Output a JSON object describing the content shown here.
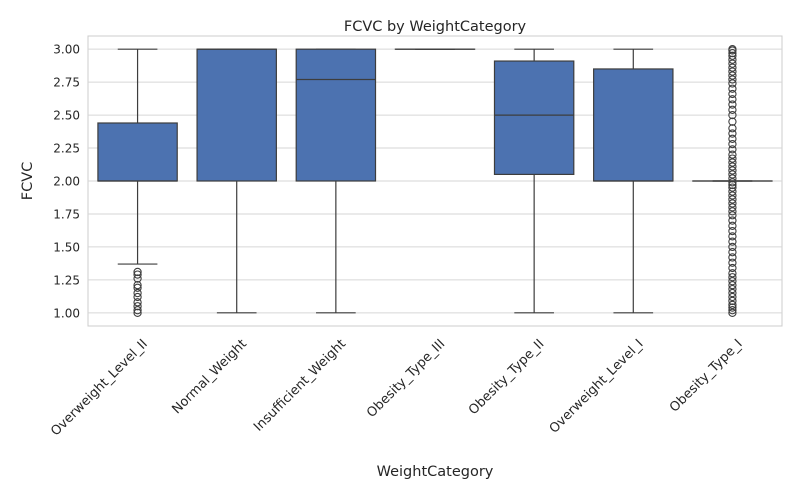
{
  "chart_data": {
    "type": "box",
    "title": "FCVC by WeightCategory",
    "xlabel": "WeightCategory",
    "ylabel": "FCVC",
    "ylim": [
      0.9,
      3.1
    ],
    "yticks": [
      "1.00",
      "1.25",
      "1.50",
      "1.75",
      "2.00",
      "2.25",
      "2.50",
      "2.75",
      "3.00"
    ],
    "grid": true,
    "box_color": "#4c72b0",
    "categories": [
      {
        "name": "Overweight_Level_II",
        "whisker_low": 1.37,
        "q1": 2.0,
        "median": 2.0,
        "q3": 2.44,
        "whisker_high": 3.0,
        "outliers": [
          1.0,
          1.02,
          1.05,
          1.08,
          1.12,
          1.15,
          1.19,
          1.21,
          1.26,
          1.29,
          1.31
        ]
      },
      {
        "name": "Normal_Weight",
        "whisker_low": 1.0,
        "q1": 2.0,
        "median": 3.0,
        "q3": 3.0,
        "whisker_high": 3.0,
        "outliers": []
      },
      {
        "name": "Insufficient_Weight",
        "whisker_low": 1.0,
        "q1": 2.0,
        "median": 2.77,
        "q3": 3.0,
        "whisker_high": 3.0,
        "outliers": []
      },
      {
        "name": "Obesity_Type_III",
        "whisker_low": 3.0,
        "q1": 3.0,
        "median": 3.0,
        "q3": 3.0,
        "whisker_high": 3.0,
        "outliers": []
      },
      {
        "name": "Obesity_Type_II",
        "whisker_low": 1.0,
        "q1": 2.05,
        "median": 2.5,
        "q3": 2.91,
        "whisker_high": 3.0,
        "outliers": []
      },
      {
        "name": "Overweight_Level_I",
        "whisker_low": 1.0,
        "q1": 2.0,
        "median": 2.0,
        "q3": 2.85,
        "whisker_high": 3.0,
        "outliers": []
      },
      {
        "name": "Obesity_Type_I",
        "whisker_low": 2.0,
        "q1": 2.0,
        "median": 2.0,
        "q3": 2.0,
        "whisker_high": 2.0,
        "outliers": [
          1.0,
          1.02,
          1.04,
          1.06,
          1.09,
          1.12,
          1.15,
          1.18,
          1.21,
          1.24,
          1.27,
          1.3,
          1.34,
          1.38,
          1.42,
          1.46,
          1.5,
          1.54,
          1.58,
          1.62,
          1.66,
          1.7,
          1.74,
          1.77,
          1.8,
          1.83,
          1.86,
          1.89,
          1.92,
          1.95,
          1.97,
          1.99,
          2.02,
          2.05,
          2.08,
          2.11,
          2.14,
          2.17,
          2.2,
          2.24,
          2.28,
          2.32,
          2.36,
          2.4,
          2.45,
          2.5,
          2.54,
          2.58,
          2.62,
          2.66,
          2.7,
          2.74,
          2.77,
          2.8,
          2.83,
          2.86,
          2.89,
          2.92,
          2.95,
          2.97,
          2.99,
          3.0
        ]
      }
    ]
  }
}
